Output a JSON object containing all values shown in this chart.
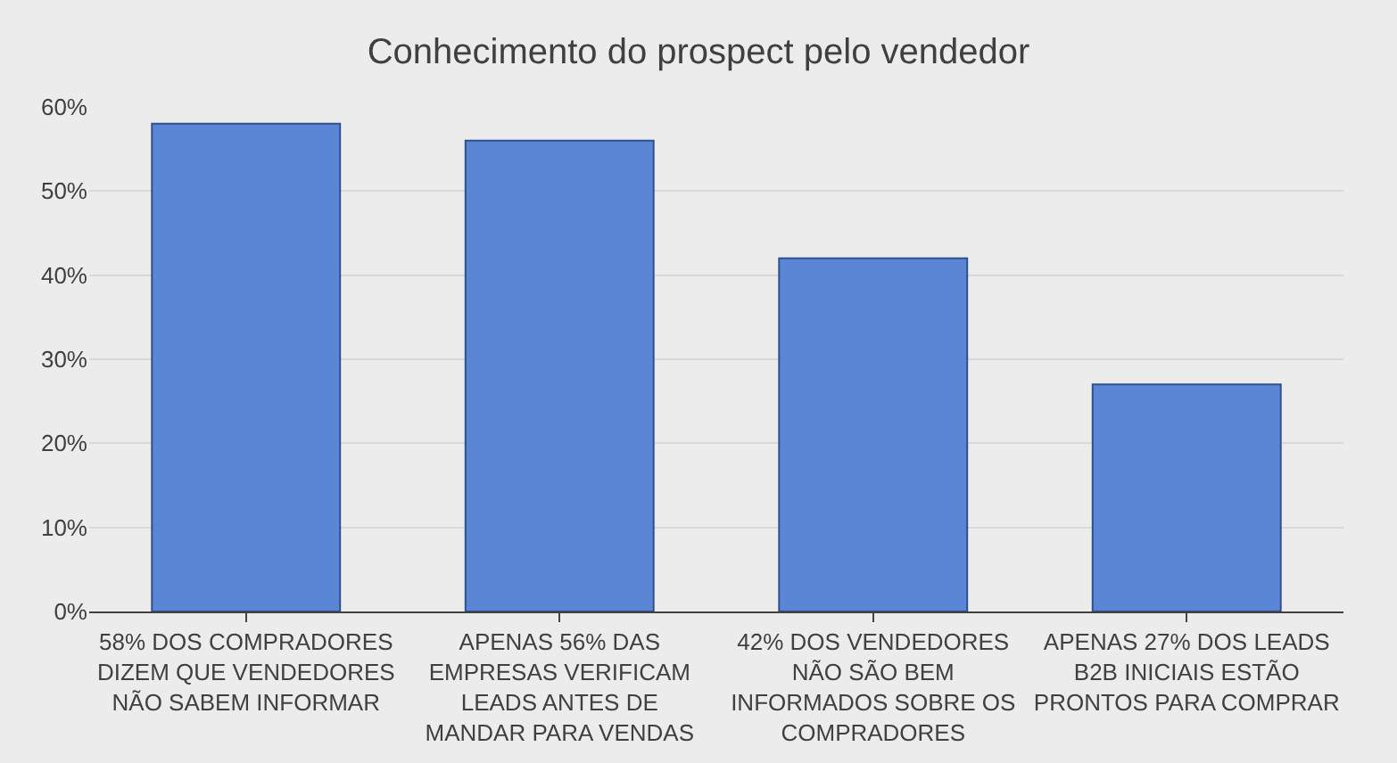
{
  "chart_data": {
    "type": "bar",
    "title": "Conhecimento do prospect pelo vendedor",
    "categories": [
      "58% DOS COMPRADORES DIZEM QUE VENDEDORES NÃO SABEM INFORMAR",
      "APENAS 56% DAS EMPRESAS VERIFICAM LEADS ANTES DE MANDAR PARA VENDAS",
      "42% DOS VENDEDORES NÃO SÃO BEM INFORMADOS SOBRE OS COMPRADORES",
      "APENAS 27% DOS LEADS B2B INICIAIS ESTÃO PRONTOS PARA COMPRAR"
    ],
    "values": [
      58,
      56,
      42,
      27
    ],
    "color": "#5b86d6",
    "ylim": [
      0,
      60
    ],
    "yticks": [
      {
        "value": 0,
        "label": "0%"
      },
      {
        "value": 10,
        "label": "10%"
      },
      {
        "value": 20,
        "label": "20%"
      },
      {
        "value": 30,
        "label": "30%"
      },
      {
        "value": 40,
        "label": "40%"
      },
      {
        "value": 50,
        "label": "50%"
      },
      {
        "value": 60,
        "label": "60%"
      }
    ],
    "grid": "y",
    "legend": false
  }
}
